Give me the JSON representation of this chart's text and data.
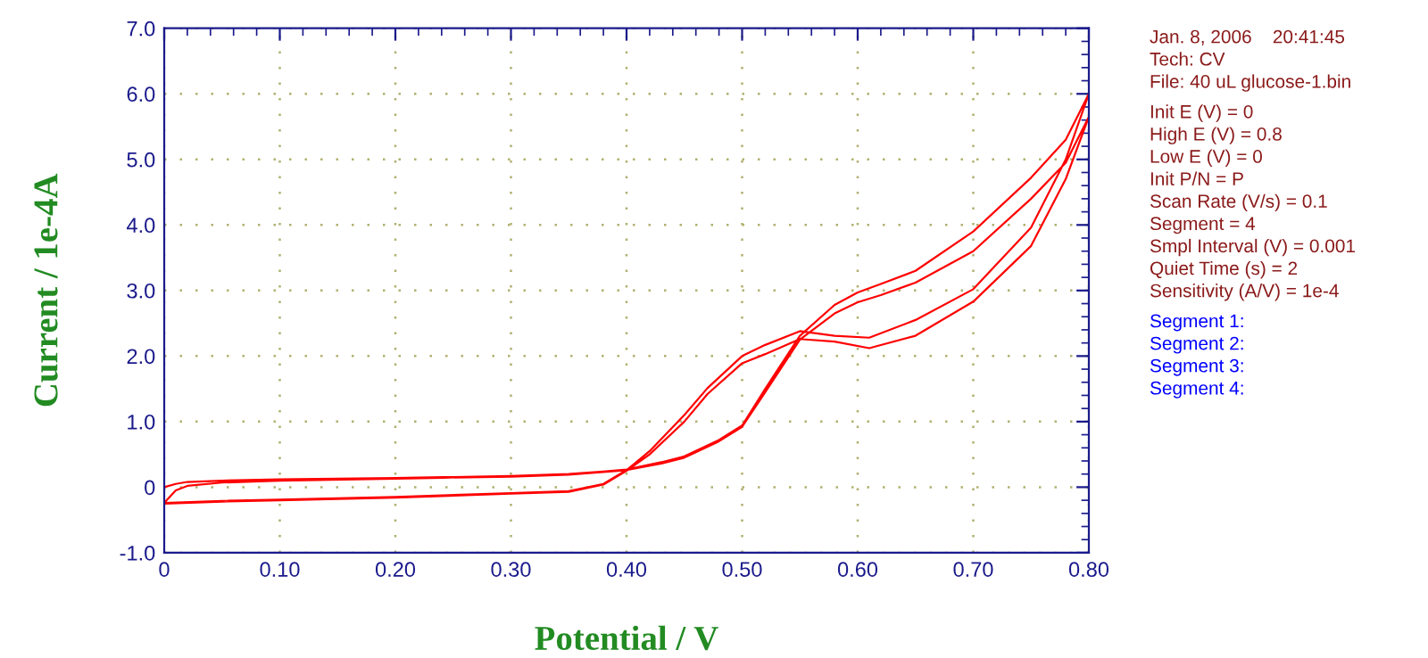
{
  "chart_data": {
    "type": "line",
    "xlabel": "Potential / V",
    "ylabel": "Current / 1e-4A",
    "series": [
      {
        "color": "#ff0000",
        "x": [
          0,
          0.01,
          0.02,
          0.05,
          0.1,
          0.2,
          0.3,
          0.35,
          0.38,
          0.4,
          0.43,
          0.45,
          0.48,
          0.5,
          0.52,
          0.55,
          0.58,
          0.6,
          0.62,
          0.65,
          0.7,
          0.75,
          0.78,
          0.8,
          0.78,
          0.75,
          0.7,
          0.65,
          0.61,
          0.58,
          0.55,
          0.52,
          0.5,
          0.47,
          0.45,
          0.42,
          0.4,
          0.38,
          0.35,
          0.3,
          0.2,
          0.1,
          0.05,
          0,
          0.01,
          0.02,
          0.05,
          0.1,
          0.2,
          0.3,
          0.35,
          0.38,
          0.4,
          0.43,
          0.45,
          0.48,
          0.5,
          0.52,
          0.55,
          0.58,
          0.6,
          0.62,
          0.65,
          0.7,
          0.75,
          0.78,
          0.8,
          0.78,
          0.75,
          0.7,
          0.65,
          0.61,
          0.58,
          0.55,
          0.52,
          0.5,
          0.47,
          0.45,
          0.42,
          0.4,
          0.38,
          0.35,
          0.3,
          0.2,
          0.1,
          0.05,
          0
        ],
        "values": [
          0.0,
          0.05,
          0.08,
          0.1,
          0.12,
          0.14,
          0.17,
          0.2,
          0.24,
          0.27,
          0.38,
          0.47,
          0.72,
          0.94,
          1.5,
          2.31,
          2.78,
          2.97,
          3.1,
          3.3,
          3.9,
          4.72,
          5.3,
          6.0,
          5.0,
          3.96,
          3.02,
          2.55,
          2.28,
          2.31,
          2.38,
          2.17,
          2.0,
          1.51,
          1.1,
          0.55,
          0.26,
          0.05,
          -0.06,
          -0.09,
          -0.15,
          -0.19,
          -0.21,
          -0.24,
          -0.05,
          0.02,
          0.07,
          0.1,
          0.13,
          0.16,
          0.19,
          0.23,
          0.26,
          0.36,
          0.45,
          0.7,
          0.92,
          1.45,
          2.25,
          2.65,
          2.82,
          2.93,
          3.12,
          3.6,
          4.4,
          4.95,
          5.65,
          4.7,
          3.68,
          2.83,
          2.31,
          2.12,
          2.22,
          2.26,
          2.03,
          1.89,
          1.42,
          1.0,
          0.5,
          0.25,
          0.04,
          -0.07,
          -0.1,
          -0.16,
          -0.2,
          -0.22,
          -0.25
        ]
      }
    ],
    "xlim": [
      0,
      0.8
    ],
    "xticks": [
      0,
      {
        "value": 0.1,
        "label": "0.10"
      },
      {
        "value": 0.2,
        "label": "0.20"
      },
      {
        "value": 0.3,
        "label": "0.30"
      },
      {
        "value": 0.4,
        "label": "0.40"
      },
      {
        "value": 0.5,
        "label": "0.50"
      },
      {
        "value": 0.6,
        "label": "0.60"
      },
      {
        "value": 0.7,
        "label": "0.70"
      },
      {
        "value": 0.8,
        "label": "0.80"
      }
    ],
    "ylim": [
      -1,
      7
    ],
    "yticks": [
      {
        "value": -1,
        "label": "-1.0"
      },
      0,
      {
        "value": 1,
        "label": "1.0"
      },
      {
        "value": 2,
        "label": "2.0"
      },
      {
        "value": 3,
        "label": "3.0"
      },
      {
        "value": 4,
        "label": "4.0"
      },
      {
        "value": 5,
        "label": "5.0"
      },
      {
        "value": 6,
        "label": "6.0"
      },
      {
        "value": 7,
        "label": "7.0"
      }
    ],
    "grid": true,
    "marker": "none",
    "line_style": "solid",
    "annotations": [
      "Jan. 8, 2006    20:41:45",
      "Tech: CV",
      "File: 40 uL glucose-1.bin",
      "Init E (V) = 0",
      "High E (V) = 0.8",
      "Low E (V) = 0",
      "Init P/N = P",
      "Scan Rate (V/s) = 0.1",
      "Segment = 4",
      "Smpl Interval (V) = 0.001",
      "Quiet Time (s) = 2",
      "Sensitivity (A/V) = 1e-4",
      "Segment 1:",
      "Segment 2:",
      "Segment 3:",
      "Segment 4:"
    ]
  }
}
